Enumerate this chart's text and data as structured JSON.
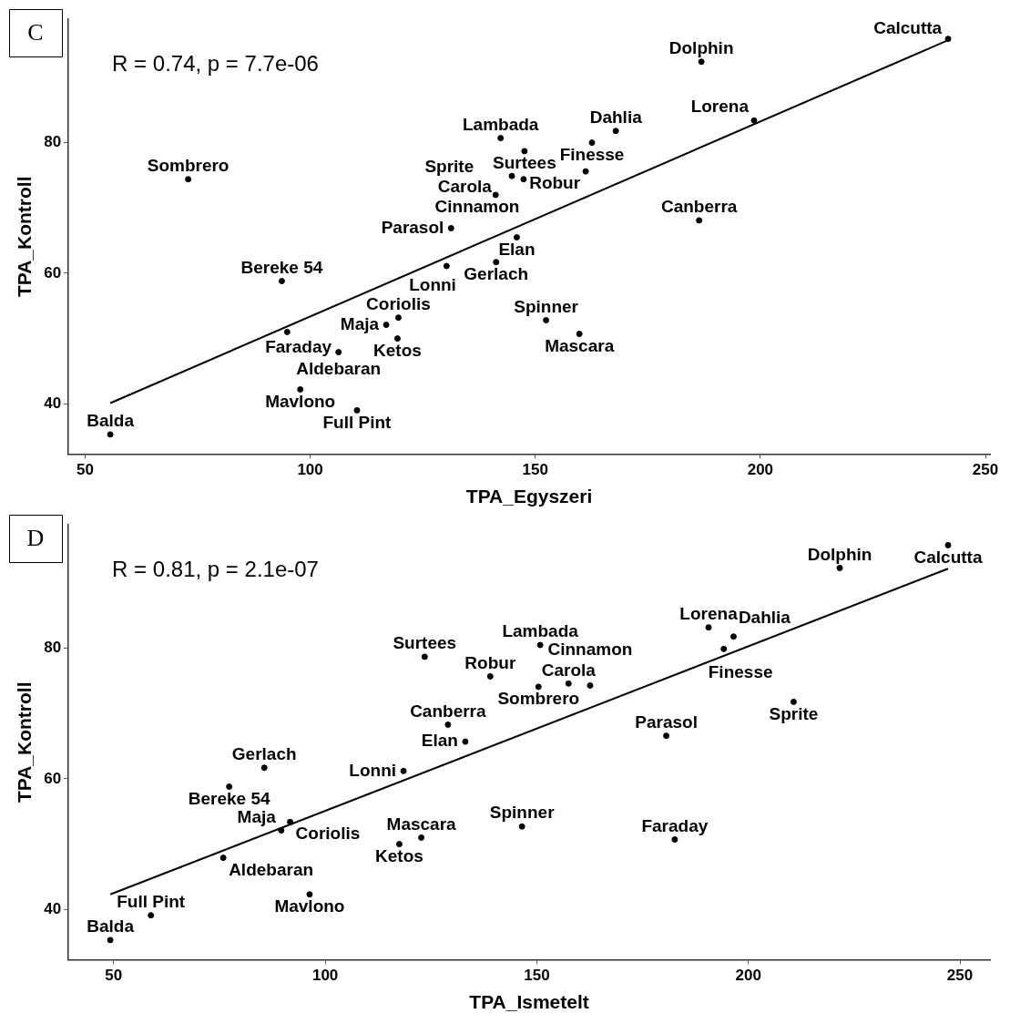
{
  "chart_data": [
    {
      "type": "scatter",
      "xlabel": "TPA_Egyszeri",
      "ylabel": "TPA_Kontroll",
      "xlim": [
        46.3,
        251
      ],
      "ylim": [
        32.3,
        98.9
      ],
      "xticks": [
        50,
        100,
        150,
        200,
        250
      ],
      "yticks": [
        40,
        60,
        80
      ],
      "grid": false,
      "legend": false,
      "series": [
        {
          "marker": "circle",
          "color": "#000000",
          "x": [
            241.7,
            186.9,
            198.6,
            167.9,
            142.3,
            162.6,
            147.6,
            161.2,
            144.8,
            147.4,
            72.9,
            141.2,
            186.4,
            131.3,
            145.9,
            141.3,
            130.3,
            93.7,
            119.6,
            152.4,
            116.9,
            94.9,
            159.8,
            119.4,
            106.3,
            97.8,
            110.4,
            55.6
          ],
          "values": [
            95.9,
            92.4,
            83.4,
            81.8,
            80.7,
            80.0,
            78.7,
            75.6,
            74.9,
            74.4,
            74.4,
            72.0,
            68.1,
            66.9,
            65.5,
            61.7,
            61.1,
            58.8,
            53.2,
            52.8,
            52.1,
            51.0,
            50.7,
            50.0,
            47.9,
            42.2,
            39.0,
            35.3
          ]
        },
        {
          "type": "line",
          "marker": "none",
          "color": "#000000",
          "x": [
            55.6,
            241.7
          ],
          "values": [
            40.1,
            95.7
          ]
        }
      ],
      "annotations": [
        "C",
        "R = 0.74, p = 7.7e-06",
        {
          "text": "Calcutta",
          "x": 241.7,
          "y": 95.9
        },
        {
          "text": "Dolphin",
          "x": 186.9,
          "y": 92.4
        },
        {
          "text": "Lorena",
          "x": 198.6,
          "y": 83.4
        },
        {
          "text": "Dahlia",
          "x": 167.9,
          "y": 81.8
        },
        {
          "text": "Lambada",
          "x": 142.3,
          "y": 80.7
        },
        {
          "text": "Finesse",
          "x": 162.6,
          "y": 80.0
        },
        {
          "text": "Surtees",
          "x": 147.6,
          "y": 78.7
        },
        {
          "text": "Robur",
          "x": 161.2,
          "y": 75.6
        },
        {
          "text": "Carola",
          "x": 144.8,
          "y": 74.9
        },
        {
          "text": "Cinnamon",
          "x": 147.4,
          "y": 74.4
        },
        {
          "text": "Sombrero",
          "x": 72.9,
          "y": 74.4
        },
        {
          "text": "Sprite",
          "x": 141.2,
          "y": 72.0
        },
        {
          "text": "Canberra",
          "x": 186.4,
          "y": 68.1
        },
        {
          "text": "Parasol",
          "x": 131.3,
          "y": 66.9
        },
        {
          "text": "Elan",
          "x": 145.9,
          "y": 65.5
        },
        {
          "text": "Gerlach",
          "x": 141.3,
          "y": 61.7
        },
        {
          "text": "Lonni",
          "x": 130.3,
          "y": 61.1
        },
        {
          "text": "Bereke 54",
          "x": 93.7,
          "y": 58.8
        },
        {
          "text": "Coriolis",
          "x": 119.6,
          "y": 53.2
        },
        {
          "text": "Spinner",
          "x": 152.4,
          "y": 52.8
        },
        {
          "text": "Maja",
          "x": 116.9,
          "y": 52.1
        },
        {
          "text": "Faraday",
          "x": 94.9,
          "y": 51.0
        },
        {
          "text": "Mascara",
          "x": 159.8,
          "y": 50.7
        },
        {
          "text": "Ketos",
          "x": 119.4,
          "y": 50.0
        },
        {
          "text": "Aldebaran",
          "x": 106.3,
          "y": 47.9
        },
        {
          "text": "Mavlono",
          "x": 97.8,
          "y": 42.2
        },
        {
          "text": "Full Pint",
          "x": 110.4,
          "y": 39.0
        },
        {
          "text": "Balda",
          "x": 55.6,
          "y": 35.3
        }
      ]
    },
    {
      "type": "scatter",
      "xlabel": "TPA_Ismetelt",
      "ylabel": "TPA_Kontroll",
      "xlim": [
        39.3,
        257.1
      ],
      "ylim": [
        32.3,
        98.9
      ],
      "xticks": [
        50,
        100,
        150,
        200,
        250
      ],
      "yticks": [
        40,
        60,
        80
      ],
      "grid": false,
      "legend": false,
      "series": [
        {
          "marker": "circle",
          "color": "#000000",
          "x": [
            247.2,
            221.6,
            190.6,
            196.5,
            150.8,
            194.2,
            123.5,
            139.0,
            157.5,
            162.6,
            150.4,
            210.7,
            129.0,
            180.6,
            133.1,
            85.6,
            118.5,
            77.3,
            91.7,
            146.5,
            89.6,
            182.6,
            122.7,
            117.5,
            75.9,
            96.3,
            58.8,
            49.2
          ],
          "values": [
            95.8,
            92.3,
            83.2,
            81.8,
            80.5,
            79.9,
            78.7,
            75.7,
            74.6,
            74.3,
            74.1,
            71.8,
            68.3,
            66.6,
            65.7,
            61.7,
            61.2,
            58.8,
            53.4,
            52.7,
            52.1,
            50.7,
            51.0,
            50.0,
            47.9,
            42.3,
            39.1,
            35.3
          ]
        },
        {
          "type": "line",
          "marker": "none",
          "color": "#000000",
          "x": [
            49.2,
            247.2
          ],
          "values": [
            42.3,
            92.2
          ]
        }
      ],
      "annotations": [
        "D",
        "R = 0.81, p = 2.1e-07",
        {
          "text": "Calcutta",
          "x": 247.2,
          "y": 95.8
        },
        {
          "text": "Dolphin",
          "x": 221.6,
          "y": 92.3
        },
        {
          "text": "Lorena",
          "x": 190.6,
          "y": 83.2
        },
        {
          "text": "Dahlia",
          "x": 196.5,
          "y": 81.8
        },
        {
          "text": "Lambada",
          "x": 150.8,
          "y": 80.5
        },
        {
          "text": "Finesse",
          "x": 194.2,
          "y": 79.9
        },
        {
          "text": "Surtees",
          "x": 123.5,
          "y": 78.7
        },
        {
          "text": "Robur",
          "x": 139.0,
          "y": 75.7
        },
        {
          "text": "Carola",
          "x": 157.5,
          "y": 74.6
        },
        {
          "text": "Cinnamon",
          "x": 162.6,
          "y": 74.3
        },
        {
          "text": "Sombrero",
          "x": 150.4,
          "y": 74.1
        },
        {
          "text": "Sprite",
          "x": 210.7,
          "y": 71.8
        },
        {
          "text": "Canberra",
          "x": 129.0,
          "y": 68.3
        },
        {
          "text": "Parasol",
          "x": 180.6,
          "y": 66.6
        },
        {
          "text": "Elan",
          "x": 133.1,
          "y": 65.7
        },
        {
          "text": "Gerlach",
          "x": 85.6,
          "y": 61.7
        },
        {
          "text": "Lonni",
          "x": 118.5,
          "y": 61.2
        },
        {
          "text": "Bereke 54",
          "x": 77.3,
          "y": 58.8
        },
        {
          "text": "Coriolis",
          "x": 91.7,
          "y": 53.4
        },
        {
          "text": "Spinner",
          "x": 146.5,
          "y": 52.7
        },
        {
          "text": "Maja",
          "x": 89.6,
          "y": 52.1
        },
        {
          "text": "Faraday",
          "x": 182.6,
          "y": 50.7
        },
        {
          "text": "Mascara",
          "x": 122.7,
          "y": 51.0
        },
        {
          "text": "Ketos",
          "x": 117.5,
          "y": 50.0
        },
        {
          "text": "Aldebaran",
          "x": 75.9,
          "y": 47.9
        },
        {
          "text": "Mavlono",
          "x": 96.3,
          "y": 42.3
        },
        {
          "text": "Full Pint",
          "x": 58.8,
          "y": 39.1
        },
        {
          "text": "Balda",
          "x": 49.2,
          "y": 35.3
        }
      ]
    }
  ]
}
